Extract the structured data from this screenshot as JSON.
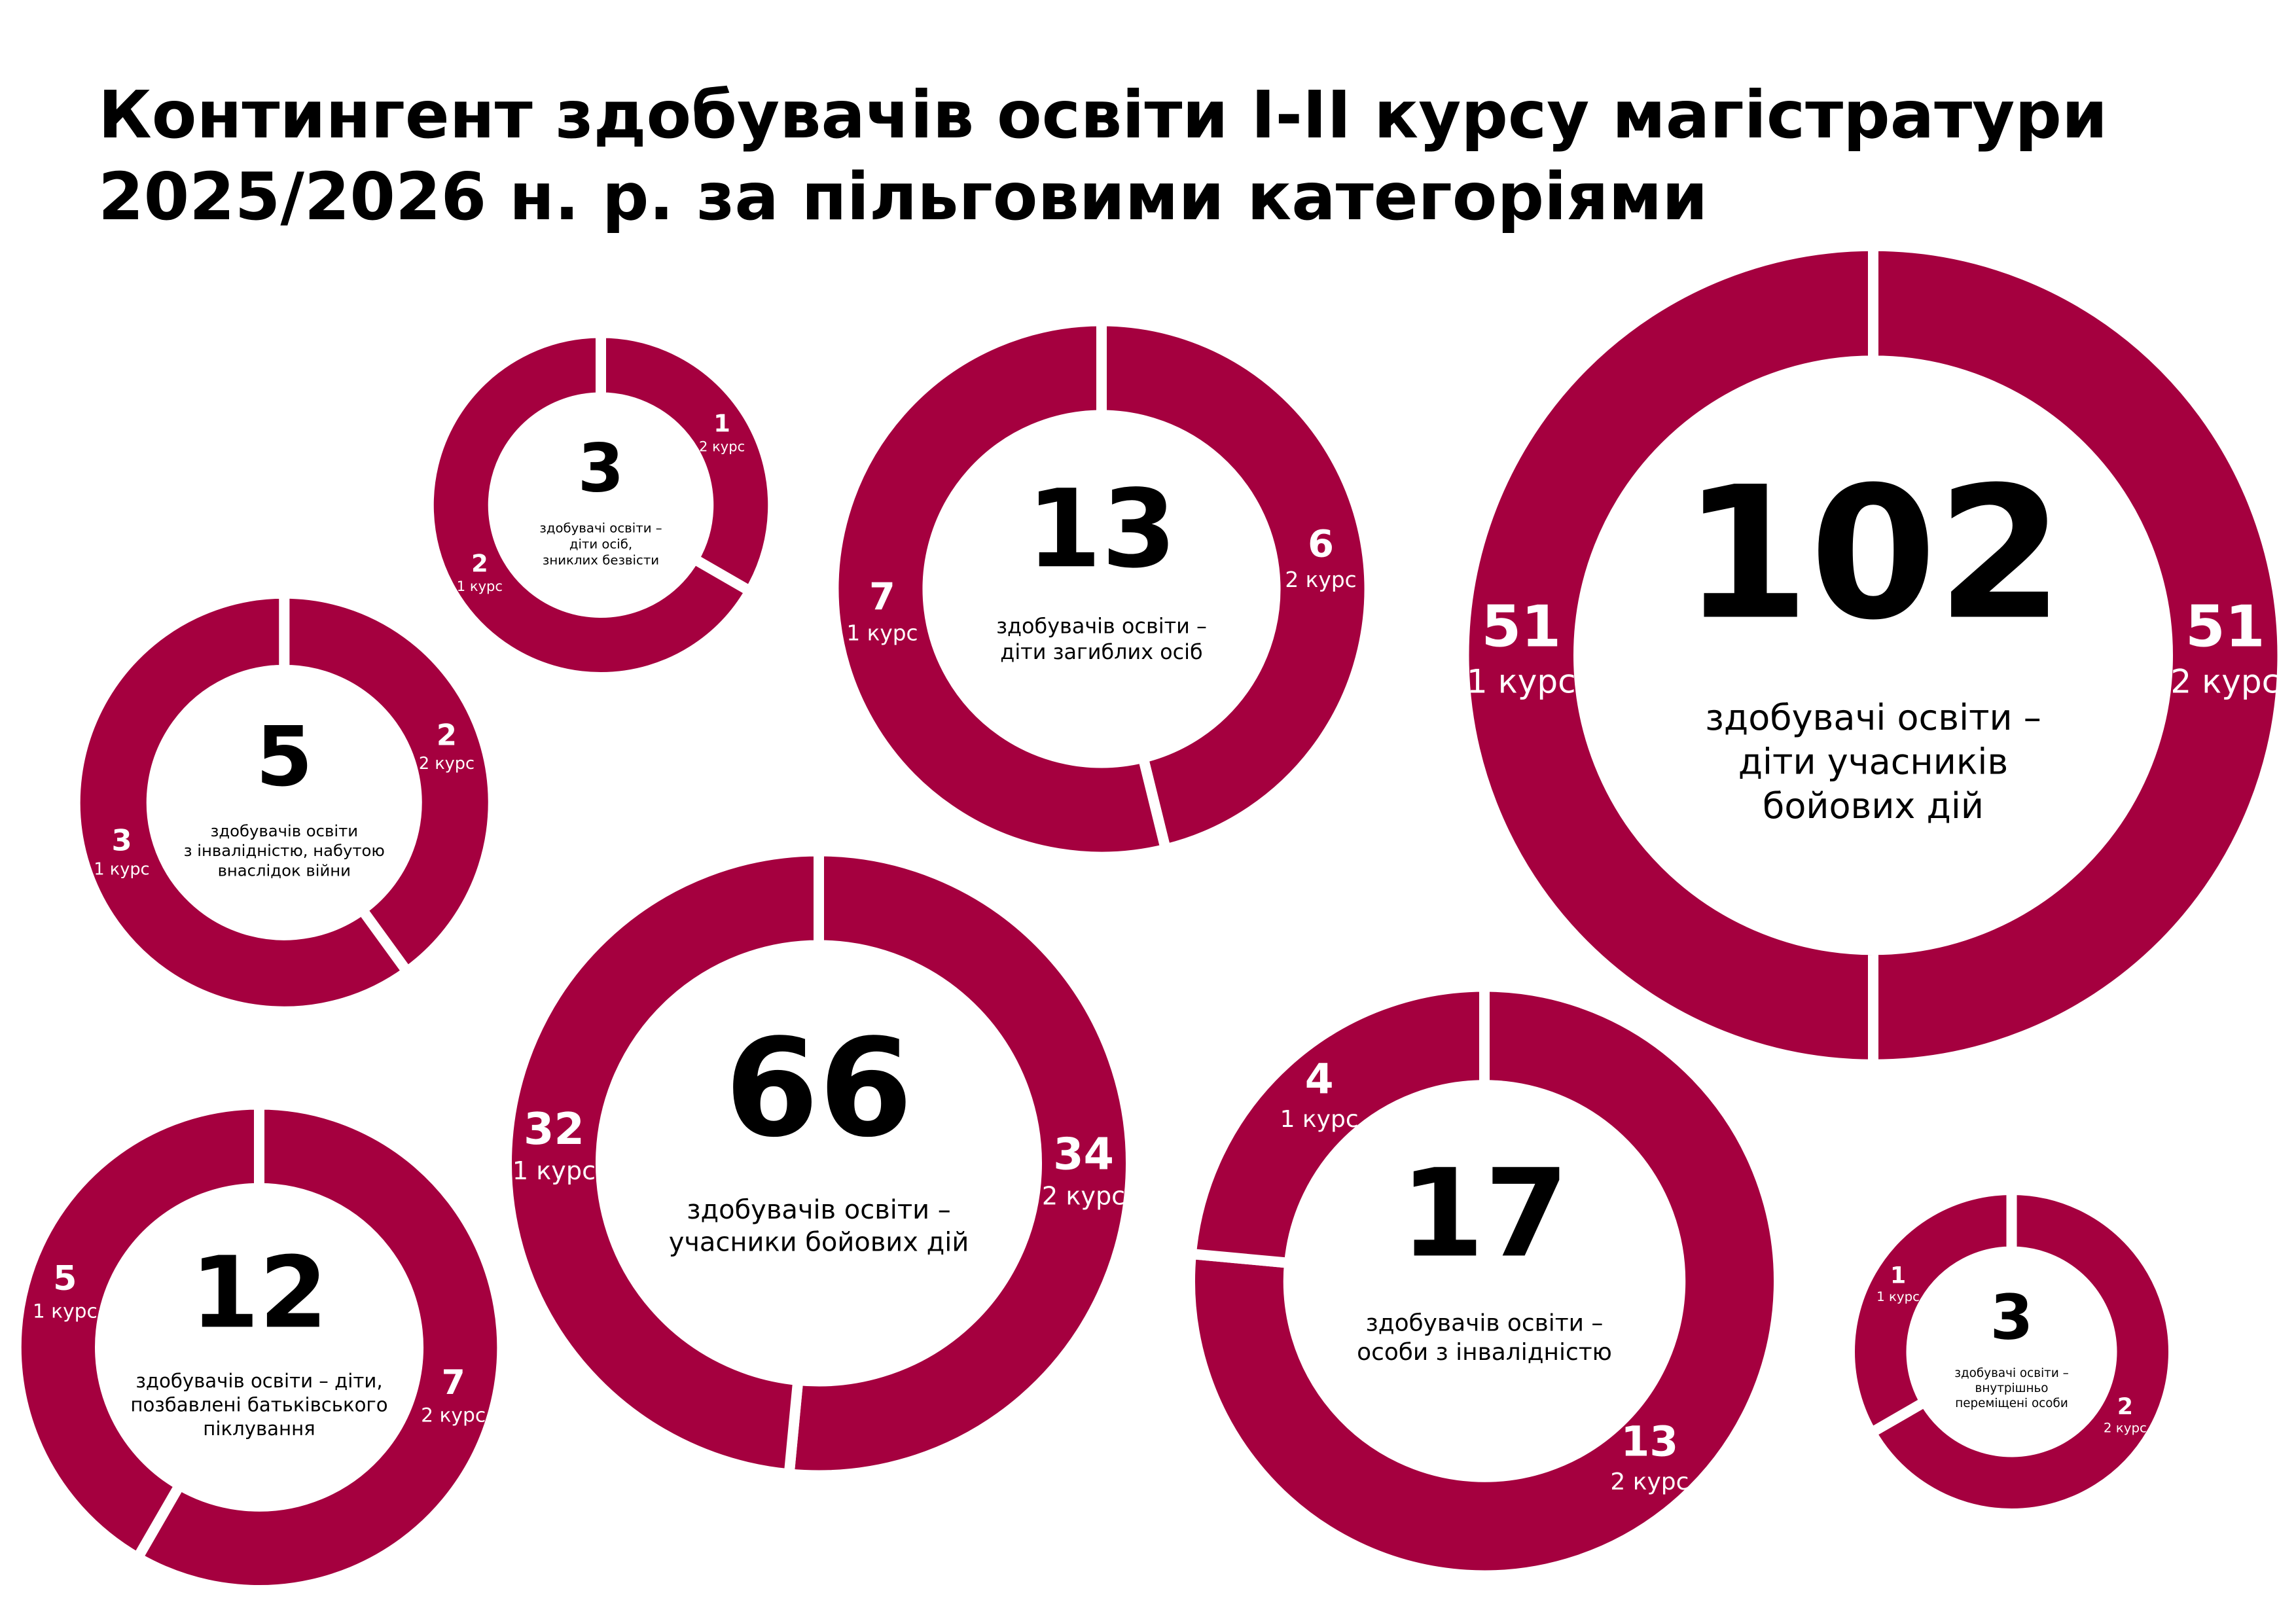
{
  "title": [
    "Контингент здобувачів освіти I-II курсу магістратури",
    "2025/2026 н. р. за пільговими категоріями"
  ],
  "chart_data": [
    {
      "type": "donut",
      "total": 3,
      "subtitle": [
        "здобувачі освіти –",
        "діти осіб,",
        "зниклих безвісти"
      ],
      "categories": [
        "2 курс",
        "1 курс"
      ],
      "values": [
        1,
        2
      ],
      "color": "#a5003f"
    },
    {
      "type": "donut",
      "total": 13,
      "subtitle": [
        "здобувачів освіти –",
        "діти загиблих осіб"
      ],
      "categories": [
        "2 курс",
        "1 курс"
      ],
      "values": [
        6,
        7
      ],
      "color": "#a5003f"
    },
    {
      "type": "donut",
      "total": 102,
      "subtitle": [
        "здобувачі освіти –",
        "діти учасників",
        "бойових дій"
      ],
      "categories": [
        "2 курс",
        "1 курс"
      ],
      "values": [
        51,
        51
      ],
      "color": "#a5003f"
    },
    {
      "type": "donut",
      "total": 5,
      "subtitle": [
        "здобувачів освіти",
        "з інвалідністю, набутою",
        "внаслідок війни"
      ],
      "categories": [
        "2 курс",
        "1 курс"
      ],
      "values": [
        2,
        3
      ],
      "color": "#a5003f"
    },
    {
      "type": "donut",
      "total": 66,
      "subtitle": [
        "здобувачів освіти –",
        "учасники бойових дій"
      ],
      "categories": [
        "2 курс",
        "1 курс"
      ],
      "values": [
        34,
        32
      ],
      "color": "#a5003f"
    },
    {
      "type": "donut",
      "total": 17,
      "subtitle": [
        "здобувачів освіти –",
        "особи з інвалідністю"
      ],
      "categories": [
        "2 курс",
        "1 курс"
      ],
      "values": [
        13,
        4
      ],
      "color": "#a5003f"
    },
    {
      "type": "donut",
      "total": 12,
      "subtitle": [
        "здобувачів освіти – діти,",
        "позбавлені батьківського",
        "піклування"
      ],
      "categories": [
        "2 курс",
        "1 курс"
      ],
      "values": [
        7,
        5
      ],
      "color": "#a5003f"
    },
    {
      "type": "donut",
      "total": 3,
      "subtitle": [
        "здобувачі освіти –",
        "внутрішньо",
        "переміщені особи"
      ],
      "categories": [
        "2 курс",
        "1 курс"
      ],
      "values": [
        2,
        1
      ],
      "color": "#a5003f"
    }
  ]
}
